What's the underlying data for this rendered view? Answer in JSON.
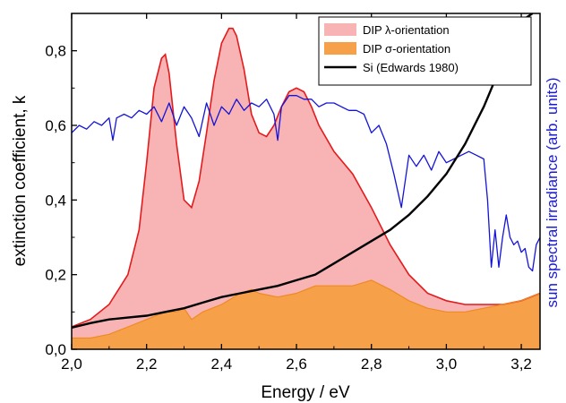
{
  "chart_data": {
    "type": "area",
    "xlabel": "Energy / eV",
    "ylabel_left": "extinction coefficient, k",
    "ylabel_right": "sun spectral irradiance (arb. units)",
    "xlim": [
      2.0,
      3.25
    ],
    "ylim": [
      0.0,
      0.9
    ],
    "x_ticks": [
      2.0,
      2.2,
      2.4,
      2.6,
      2.8,
      3.0,
      3.2
    ],
    "x_tick_labels": [
      "2,0",
      "2,2",
      "2,4",
      "2,6",
      "2,8",
      "3,0",
      "3,2"
    ],
    "y_ticks": [
      0.0,
      0.2,
      0.4,
      0.6,
      0.8
    ],
    "y_tick_labels": [
      "0,0",
      "0,2",
      "0,4",
      "0,6",
      "0,8"
    ],
    "grid": false,
    "legend_position": "top-right",
    "colors": {
      "lambda_fill": "#f8b4b4",
      "lambda_line": "#e41a1c",
      "sigma_fill": "#f7a04a",
      "sigma_line": "#ee8a1f",
      "si_line": "#000000",
      "sun_line": "#1414d6",
      "right_axis_label": "#1a1ad0"
    },
    "series": [
      {
        "name": "DIP λ-orientation",
        "style": "filled",
        "x": [
          2.0,
          2.05,
          2.1,
          2.15,
          2.18,
          2.2,
          2.22,
          2.24,
          2.25,
          2.26,
          2.28,
          2.3,
          2.32,
          2.34,
          2.36,
          2.38,
          2.4,
          2.42,
          2.43,
          2.44,
          2.46,
          2.48,
          2.5,
          2.52,
          2.54,
          2.56,
          2.58,
          2.6,
          2.62,
          2.64,
          2.66,
          2.7,
          2.75,
          2.8,
          2.85,
          2.9,
          2.95,
          3.0,
          3.05,
          3.1,
          3.15,
          3.2,
          3.25
        ],
        "y": [
          0.06,
          0.08,
          0.12,
          0.2,
          0.32,
          0.5,
          0.7,
          0.78,
          0.79,
          0.74,
          0.55,
          0.4,
          0.38,
          0.45,
          0.58,
          0.72,
          0.82,
          0.86,
          0.86,
          0.84,
          0.75,
          0.63,
          0.58,
          0.57,
          0.6,
          0.65,
          0.69,
          0.7,
          0.69,
          0.65,
          0.6,
          0.53,
          0.47,
          0.38,
          0.28,
          0.2,
          0.15,
          0.13,
          0.12,
          0.12,
          0.12,
          0.13,
          0.15
        ]
      },
      {
        "name": "DIP σ-orientation",
        "style": "filled",
        "x": [
          2.0,
          2.05,
          2.1,
          2.15,
          2.2,
          2.25,
          2.28,
          2.3,
          2.32,
          2.35,
          2.4,
          2.45,
          2.48,
          2.5,
          2.55,
          2.6,
          2.65,
          2.7,
          2.75,
          2.8,
          2.85,
          2.9,
          2.95,
          3.0,
          3.05,
          3.1,
          3.15,
          3.2,
          3.25
        ],
        "y": [
          0.03,
          0.03,
          0.04,
          0.06,
          0.08,
          0.1,
          0.1,
          0.11,
          0.08,
          0.1,
          0.12,
          0.15,
          0.16,
          0.15,
          0.14,
          0.15,
          0.17,
          0.17,
          0.17,
          0.185,
          0.16,
          0.13,
          0.11,
          0.1,
          0.1,
          0.11,
          0.12,
          0.13,
          0.15
        ]
      },
      {
        "name": "Si (Edwards 1980)",
        "style": "line",
        "x": [
          2.0,
          2.05,
          2.1,
          2.15,
          2.2,
          2.25,
          2.3,
          2.35,
          2.4,
          2.45,
          2.5,
          2.55,
          2.6,
          2.65,
          2.7,
          2.75,
          2.8,
          2.85,
          2.9,
          2.95,
          3.0,
          3.05,
          3.1,
          3.15,
          3.2,
          3.23
        ],
        "y": [
          0.058,
          0.07,
          0.08,
          0.085,
          0.09,
          0.1,
          0.11,
          0.125,
          0.14,
          0.15,
          0.16,
          0.17,
          0.185,
          0.2,
          0.23,
          0.26,
          0.29,
          0.32,
          0.36,
          0.41,
          0.47,
          0.55,
          0.65,
          0.77,
          0.88,
          0.9
        ]
      },
      {
        "name": "sun spectral irradiance",
        "style": "line",
        "axis": "right",
        "x": [
          2.0,
          2.02,
          2.04,
          2.06,
          2.08,
          2.1,
          2.11,
          2.12,
          2.14,
          2.16,
          2.18,
          2.2,
          2.22,
          2.24,
          2.26,
          2.28,
          2.3,
          2.32,
          2.34,
          2.36,
          2.38,
          2.4,
          2.42,
          2.44,
          2.46,
          2.48,
          2.5,
          2.52,
          2.54,
          2.55,
          2.56,
          2.58,
          2.6,
          2.62,
          2.64,
          2.66,
          2.68,
          2.7,
          2.72,
          2.74,
          2.76,
          2.78,
          2.8,
          2.82,
          2.84,
          2.86,
          2.88,
          2.9,
          2.92,
          2.94,
          2.96,
          2.98,
          3.0,
          3.02,
          3.04,
          3.06,
          3.08,
          3.1,
          3.11,
          3.12,
          3.13,
          3.14,
          3.15,
          3.16,
          3.17,
          3.18,
          3.19,
          3.2,
          3.21,
          3.22,
          3.23,
          3.24,
          3.25
        ],
        "y": [
          0.58,
          0.6,
          0.59,
          0.61,
          0.6,
          0.62,
          0.56,
          0.62,
          0.63,
          0.62,
          0.64,
          0.63,
          0.65,
          0.61,
          0.66,
          0.6,
          0.65,
          0.62,
          0.57,
          0.66,
          0.6,
          0.65,
          0.63,
          0.67,
          0.64,
          0.66,
          0.65,
          0.67,
          0.63,
          0.56,
          0.65,
          0.68,
          0.68,
          0.67,
          0.67,
          0.65,
          0.66,
          0.66,
          0.65,
          0.64,
          0.64,
          0.63,
          0.58,
          0.6,
          0.55,
          0.47,
          0.38,
          0.52,
          0.49,
          0.52,
          0.48,
          0.53,
          0.5,
          0.51,
          0.52,
          0.53,
          0.52,
          0.51,
          0.4,
          0.22,
          0.32,
          0.22,
          0.3,
          0.36,
          0.3,
          0.28,
          0.29,
          0.26,
          0.27,
          0.22,
          0.21,
          0.28,
          0.3
        ]
      }
    ],
    "legend_entries": [
      {
        "label": "DIP λ-orientation",
        "swatch": "fill",
        "color": "#f8b4b4"
      },
      {
        "label": "DIP σ-orientation",
        "swatch": "fill",
        "color": "#f7a04a"
      },
      {
        "label": "Si (Edwards 1980)",
        "swatch": "line",
        "color": "#000000"
      }
    ]
  }
}
